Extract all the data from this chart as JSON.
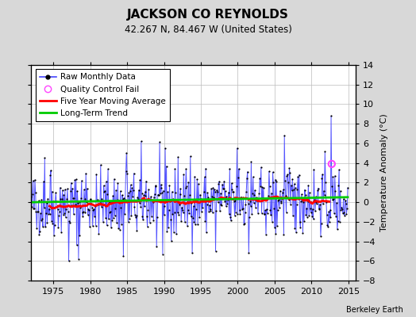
{
  "title": "JACKSON CO REYNOLDS",
  "subtitle": "42.267 N, 84.467 W (United States)",
  "ylabel": "Temperature Anomaly (°C)",
  "attribution": "Berkeley Earth",
  "xlim": [
    1972,
    2016
  ],
  "ylim": [
    -8,
    14
  ],
  "yticks": [
    -8,
    -6,
    -4,
    -2,
    0,
    2,
    4,
    6,
    8,
    10,
    12,
    14
  ],
  "xticks": [
    1975,
    1980,
    1985,
    1990,
    1995,
    2000,
    2005,
    2010,
    2015
  ],
  "background_color": "#d8d8d8",
  "plot_bg_color": "#ffffff",
  "raw_color": "#4444ff",
  "dot_color": "#000000",
  "moving_avg_color": "#ff0000",
  "trend_color": "#00cc00",
  "qc_fail_color": "#ff44ff",
  "seed": 42,
  "trend_slope": 0.012,
  "qc_fail_year": 2012.75,
  "qc_fail_value": 3.9
}
